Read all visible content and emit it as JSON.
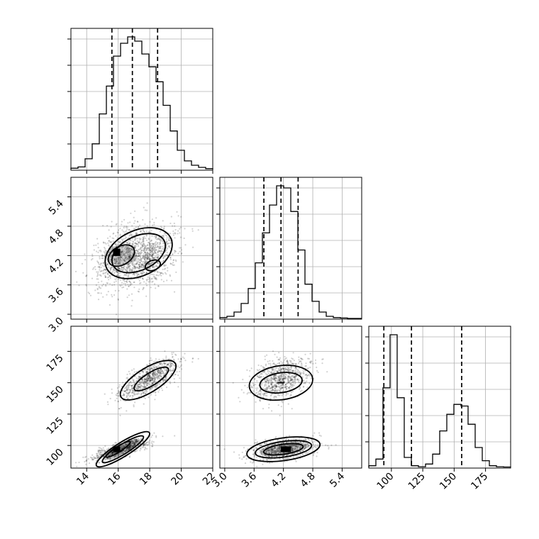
{
  "chart_data": {
    "type": "corner",
    "parameters": [
      {
        "range": [
          13,
          22
        ],
        "ticks": [
          "14",
          "16",
          "18",
          "20",
          "22"
        ],
        "tick_values": [
          14,
          16,
          18,
          20,
          22
        ]
      },
      {
        "range": [
          2.9,
          5.8
        ],
        "ticks": [
          "3.0",
          "3.6",
          "4.2",
          "4.8",
          "5.4"
        ],
        "tick_values": [
          3.0,
          3.6,
          4.2,
          4.8,
          5.4
        ]
      },
      {
        "range": [
          82,
          195
        ],
        "ticks": [
          "100",
          "125",
          "150",
          "175"
        ],
        "tick_values": [
          100,
          125,
          150,
          175
        ]
      }
    ],
    "quantiles": [
      [
        15.6,
        16.9,
        18.5
      ],
      [
        3.8,
        4.15,
        4.5
      ],
      [
        94,
        116,
        156
      ]
    ],
    "histograms": [
      {
        "bin_start": 13,
        "bin_width": 0.45,
        "counts": [
          3,
          6,
          25,
          60,
          130,
          195,
          265,
          295,
          310,
          300,
          270,
          240,
          205,
          150,
          90,
          45,
          20,
          10,
          5,
          2
        ]
      },
      {
        "bin_start": 2.9,
        "bin_width": 0.145,
        "counts": [
          2,
          5,
          15,
          35,
          70,
          130,
          200,
          265,
          310,
          305,
          250,
          160,
          80,
          40,
          15,
          5,
          2,
          1,
          0,
          0
        ]
      },
      {
        "bin_start": 82,
        "bin_width": 5.65,
        "counts": [
          5,
          25,
          240,
          400,
          210,
          30,
          5,
          2,
          10,
          40,
          110,
          160,
          190,
          185,
          130,
          60,
          20,
          5,
          2,
          1
        ]
      }
    ],
    "modes": [
      {
        "weight": 0.5,
        "mean": [
          16.2,
          4.2,
          97
        ],
        "sd": [
          0.9,
          0.32,
          4.5
        ],
        "corr_01": 0.45,
        "corr_02": 0.8
      },
      {
        "weight": 0.5,
        "mean": [
          18.0,
          4.15,
          153
        ],
        "sd": [
          0.95,
          0.3,
          8.5
        ],
        "corr_01": 0.45,
        "corr_02": 0.7
      }
    ],
    "grid": true
  }
}
